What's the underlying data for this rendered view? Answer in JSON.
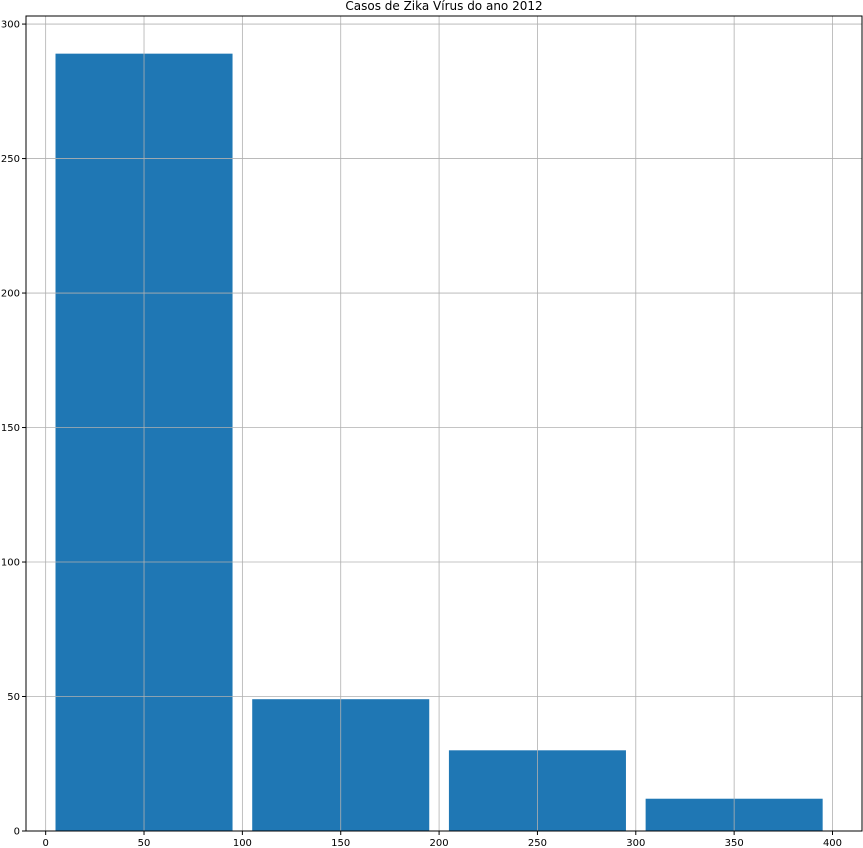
{
  "chart_data": {
    "type": "bar",
    "title": "Casos de Zika Vírus do ano 2012",
    "xlabel": "",
    "ylabel": "",
    "bars": [
      {
        "x_start": 5,
        "x_end": 95,
        "value": 289
      },
      {
        "x_start": 105,
        "x_end": 195,
        "value": 49
      },
      {
        "x_start": 205,
        "x_end": 295,
        "value": 30
      },
      {
        "x_start": 305,
        "x_end": 395,
        "value": 12
      }
    ],
    "xlim": [
      -10,
      415
    ],
    "ylim": [
      0,
      303
    ],
    "x_ticks": [
      0,
      50,
      100,
      150,
      200,
      250,
      300,
      350,
      400
    ],
    "y_ticks": [
      0,
      50,
      100,
      150,
      200,
      250,
      300
    ],
    "grid": true,
    "bar_color": "#1f77b4",
    "grid_color": "#b0b0b0"
  }
}
